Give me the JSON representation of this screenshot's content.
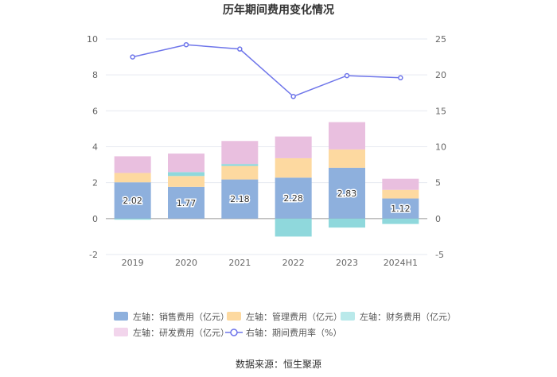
{
  "chart_data": {
    "type": "bar",
    "title": "历年期间费用变化情况",
    "categories": [
      "2019",
      "2020",
      "2021",
      "2022",
      "2023",
      "2024H1"
    ],
    "left_axis": {
      "ylim": [
        -2,
        10
      ],
      "ticks": [
        -2,
        0,
        2,
        4,
        6,
        8,
        10
      ]
    },
    "right_axis": {
      "ylim": [
        -5,
        25
      ],
      "ticks": [
        -5,
        0,
        5,
        10,
        15,
        20,
        25
      ]
    },
    "series": [
      {
        "name": "销售费用（亿元）",
        "axis": "left",
        "kind": "stacked-bar",
        "color": "#8eb0dd",
        "values": [
          2.02,
          1.77,
          2.18,
          2.28,
          2.83,
          1.12
        ]
      },
      {
        "name": "管理费用（亿元）",
        "axis": "left",
        "kind": "stacked-bar",
        "color": "#fdd9a0",
        "values": [
          0.52,
          0.6,
          0.75,
          1.08,
          1.02,
          0.48
        ]
      },
      {
        "name": "财务费用（亿元）",
        "axis": "left",
        "kind": "stacked-bar",
        "color": "#8fd8dc",
        "values": [
          -0.06,
          0.22,
          0.11,
          -1.0,
          -0.5,
          -0.3
        ]
      },
      {
        "name": "研发费用（亿元）",
        "axis": "left",
        "kind": "stacked-bar",
        "color": "#e9bfdf",
        "values": [
          0.93,
          1.03,
          1.28,
          1.21,
          1.52,
          0.62
        ]
      },
      {
        "name": "期间费用率（%）",
        "axis": "right",
        "kind": "line",
        "color": "#6f76ea",
        "values": [
          22.5,
          24.2,
          23.6,
          17.0,
          19.9,
          19.6
        ]
      }
    ],
    "bar_labels": [
      "2.02",
      "1.77",
      "2.18",
      "2.28",
      "2.83",
      "1.12"
    ]
  },
  "legend": [
    {
      "prefix": "左轴：",
      "label": "销售费用（亿元）",
      "color": "#8eb0dd",
      "marker": "rect"
    },
    {
      "prefix": "左轴：",
      "label": "管理费用（亿元）",
      "color": "#fdd9a0",
      "marker": "rect"
    },
    {
      "prefix": "左轴：",
      "label": "财务费用（亿元）",
      "color": "#b9e9ea",
      "marker": "rect"
    },
    {
      "prefix": "左轴：",
      "label": "研发费用（亿元）",
      "color": "#f2d5ec",
      "marker": "rect"
    },
    {
      "prefix": "右轴：",
      "label": "期间费用率（%）",
      "color": "#6f76ea",
      "marker": "line"
    }
  ],
  "source": "数据来源：恒生聚源"
}
